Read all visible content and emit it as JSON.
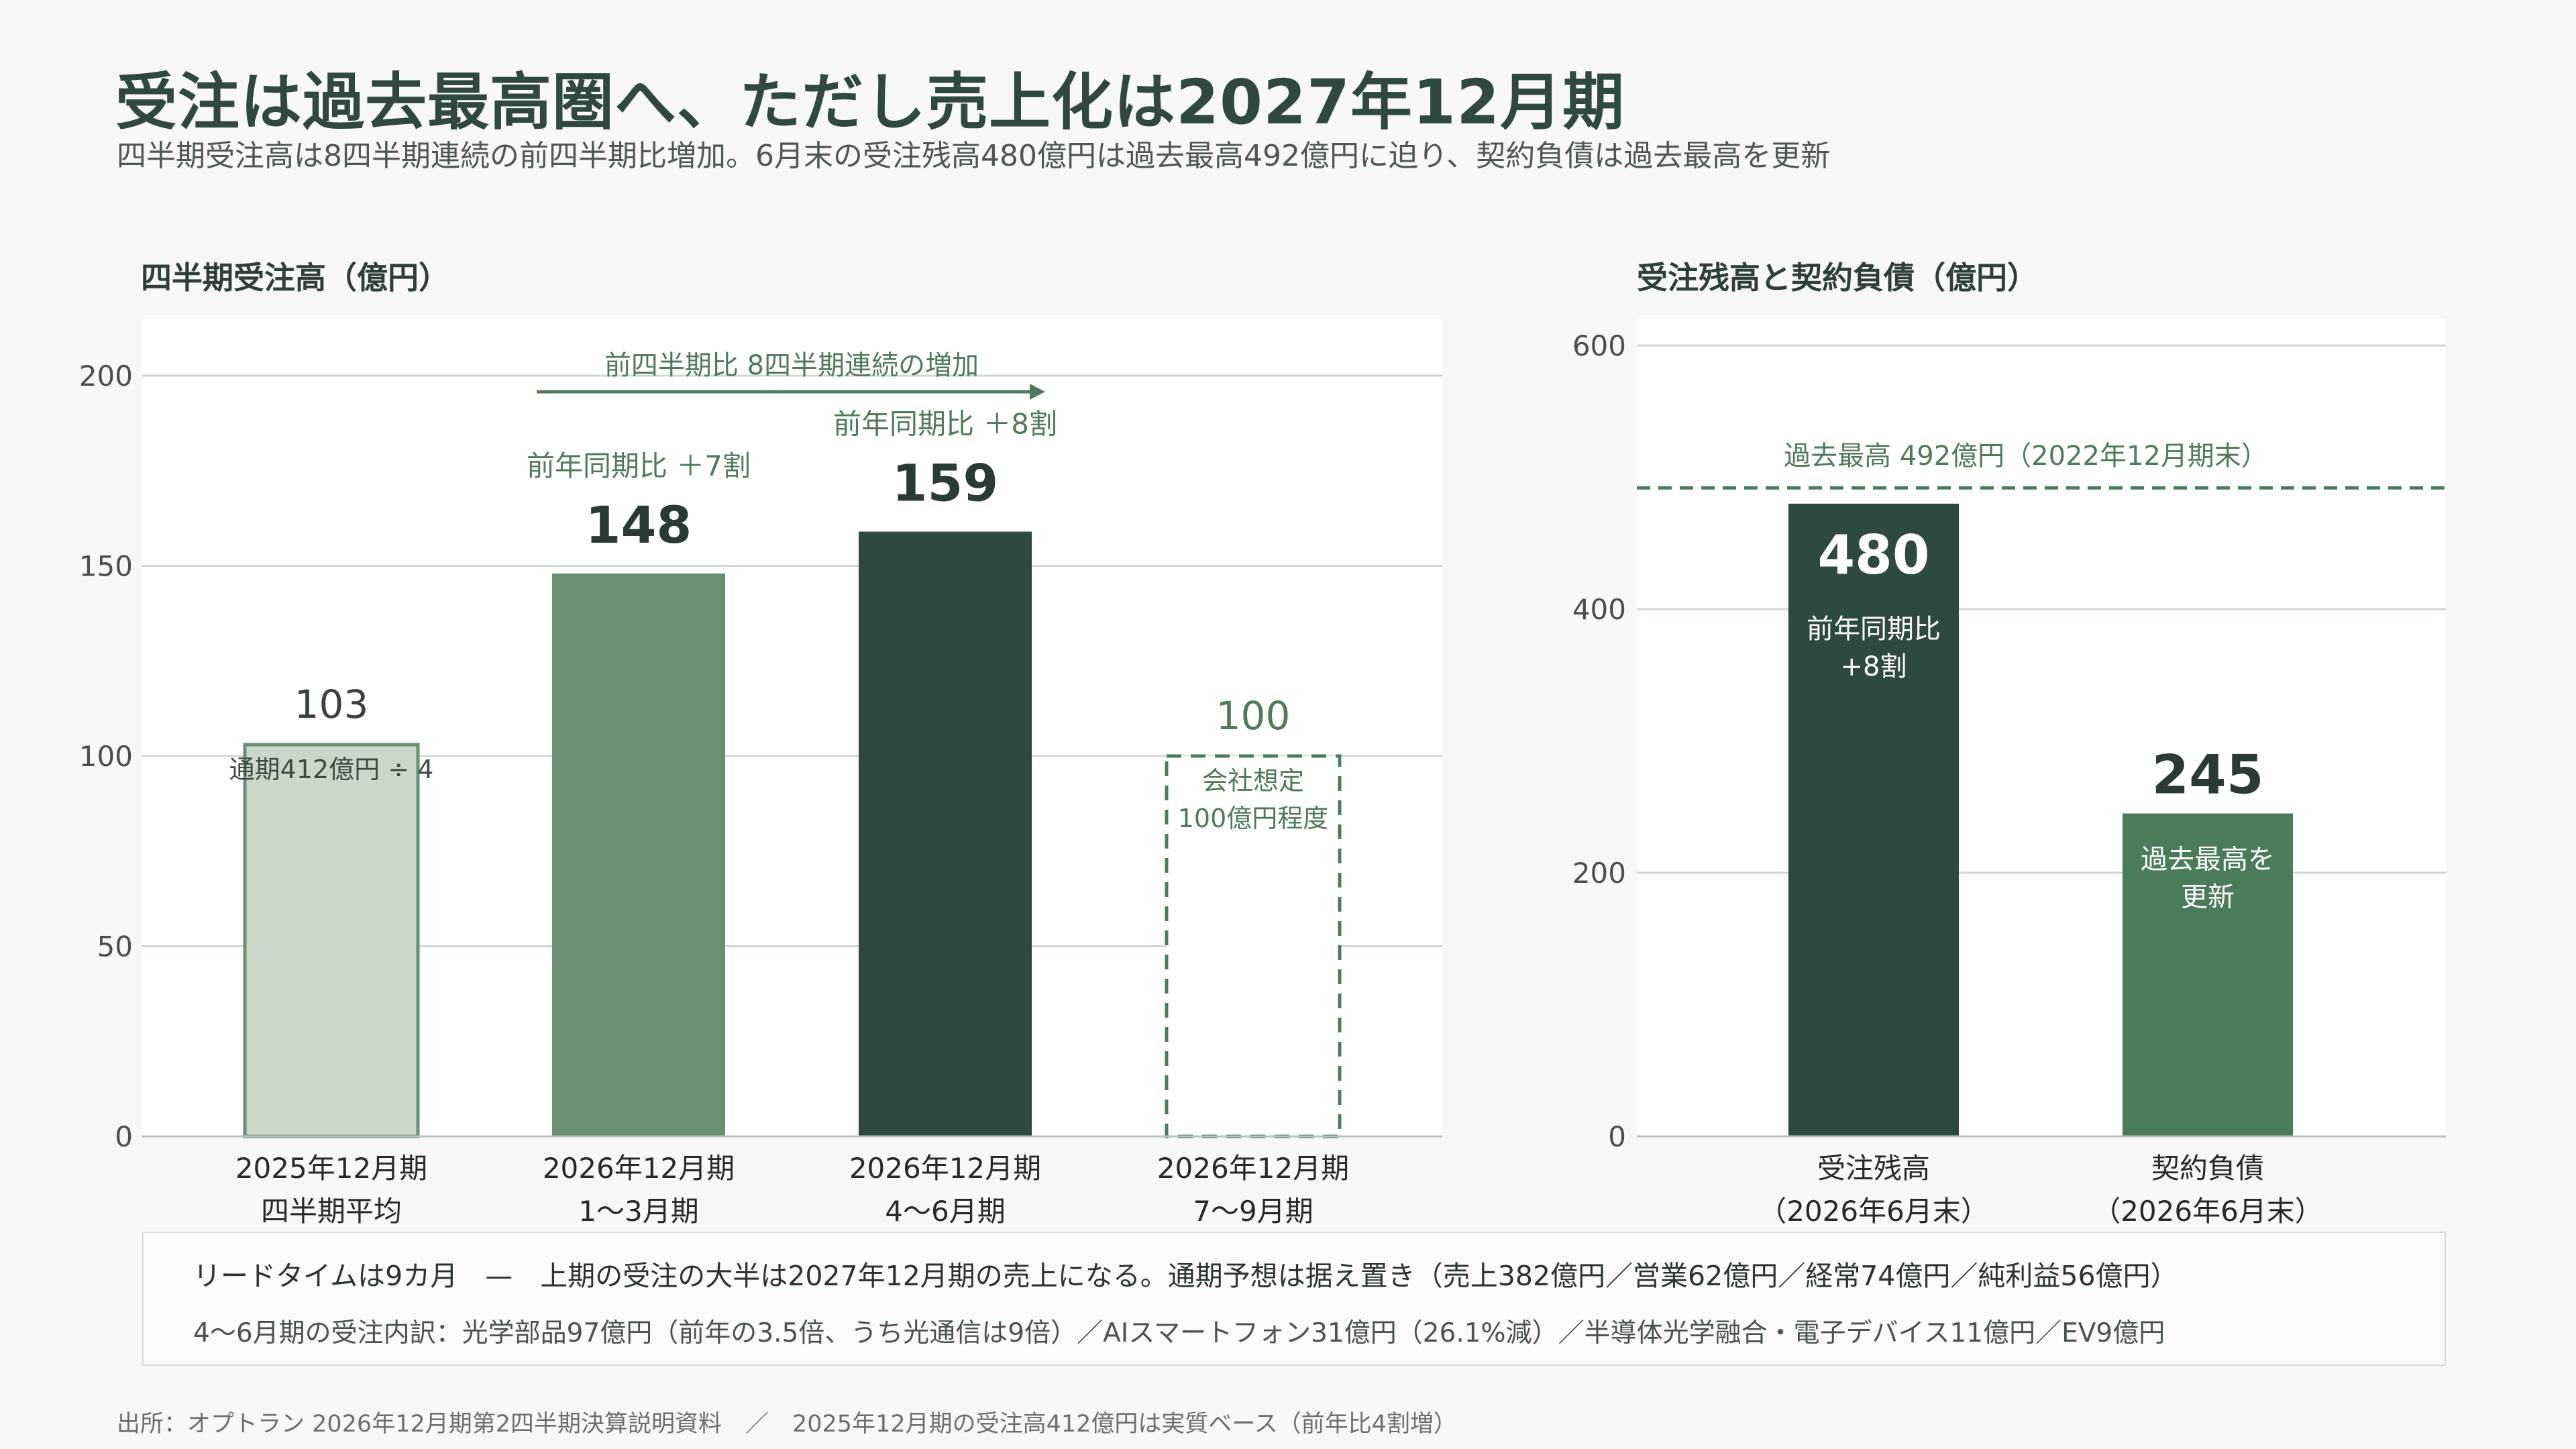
{
  "title": "受注は過去最高圏へ、ただし売上化は2027年12月期",
  "subtitle": "四半期受注高は8四半期連続の前四半期比増加。6月末の受注残高480億円は過去最高492億円に迫り、契約負債は過去最高を更新",
  "colors": {
    "light": "#c8d8cb",
    "lightBorder": "#6b8f75",
    "mid": "#6a8f71",
    "dark": "#2e4a3e",
    "accent": "#4a7c59",
    "accentText": "#4f7a5c",
    "grid": "#cfd8d2"
  },
  "chart_data": [
    {
      "type": "bar",
      "title": "四半期受注高（億円）",
      "categories": [
        [
          "2025年12月期",
          "四半期平均"
        ],
        [
          "2026年12月期",
          "1〜3月期"
        ],
        [
          "2026年12月期",
          "4〜6月期"
        ],
        [
          "2026年12月期",
          "7〜9月期"
        ]
      ],
      "values": [
        103,
        148,
        159,
        100
      ],
      "value_labels": [
        "103",
        "148",
        "159",
        "100"
      ],
      "bar_notes": [
        [
          "通期412億円 ÷ 4"
        ],
        [],
        [],
        [
          "会社想定",
          "100億円程度"
        ]
      ],
      "bar_annotations": [
        "",
        "前年同期比 ＋7割",
        "前年同期比 ＋8割",
        ""
      ],
      "bar_styles": [
        "light",
        "mid",
        "dark",
        "dashed"
      ],
      "y_ticks": [
        "0",
        "50",
        "100",
        "150",
        "200"
      ],
      "ylim": [
        0,
        200
      ],
      "trend_label": "前四半期比 8四半期連続の増加",
      "grid": true
    },
    {
      "type": "bar",
      "title": "受注残高と契約負債（億円）",
      "categories": [
        [
          "受注残高",
          "（2026年6月末）"
        ],
        [
          "契約負債",
          "（2026年6月末）"
        ]
      ],
      "values": [
        480,
        245
      ],
      "value_labels": [
        "480",
        "245"
      ],
      "bar_notes": [
        [
          "前年同期比",
          "+8割"
        ],
        [
          "過去最高を",
          "更新"
        ]
      ],
      "bar_styles": [
        "dark",
        "accent"
      ],
      "y_ticks": [
        "0",
        "200",
        "400",
        "600"
      ],
      "ylim": [
        0,
        600
      ],
      "reference_line": {
        "value": 492,
        "label": "過去最高 492億円（2022年12月期末）"
      },
      "grid": true
    }
  ],
  "notes": {
    "line1": "リードタイムは9カ月　—　上期の受注の大半は2027年12月期の売上になる。通期予想は据え置き（売上382億円／営業62億円／経常74億円／純利益56億円）",
    "line2": "4〜6月期の受注内訳：光学部品97億円（前年の3.5倍、うち光通信は9倍）／AIスマートフォン31億円（26.1%減）／半導体光学融合・電子デバイス11億円／EV9億円"
  },
  "source": "出所：オプトラン 2026年12月期第2四半期決算説明資料　／　2025年12月期の受注高412億円は実質ベース（前年比4割増）"
}
